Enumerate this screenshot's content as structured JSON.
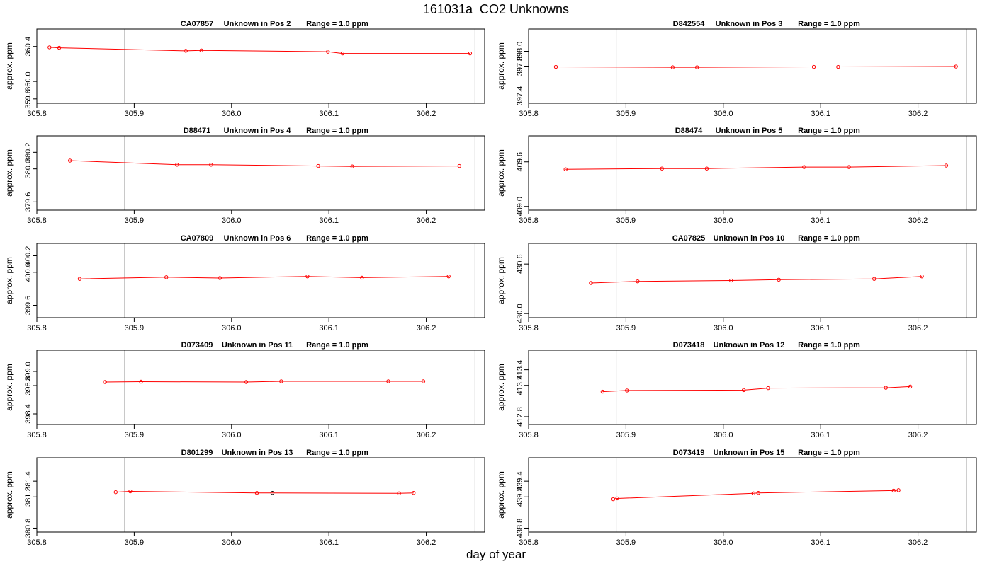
{
  "title": "161031a  CO2 Unknowns",
  "xlabel": "day of year",
  "colors": {
    "series": "#ff0000",
    "highlight": "#000000",
    "vline": "#bebebe",
    "axis": "#000000"
  },
  "chart_data": [
    {
      "type": "line",
      "title_id": "CA07857",
      "title_pos": "Unknown in Pos 2",
      "title_range": "Range = 1.0 ppm",
      "ylabel": "approx. ppm",
      "xlim": [
        305.8,
        306.26
      ],
      "ylim": [
        359.75,
        360.6
      ],
      "x_ticks": [
        "305.8",
        "305.9",
        "306.0",
        "306.1",
        "306.2"
      ],
      "y_ticks": [
        "359.8",
        "360.0",
        "360.4"
      ],
      "vlines": [
        305.89,
        306.25
      ],
      "x": [
        305.813,
        305.823,
        305.953,
        305.969,
        306.099,
        306.114,
        306.245
      ],
      "y": [
        360.39,
        360.385,
        360.35,
        360.355,
        360.34,
        360.32,
        360.32
      ],
      "highlight": []
    },
    {
      "type": "line",
      "title_id": "D842554",
      "title_pos": "Unknown in Pos 3",
      "title_range": "Range = 1.0 ppm",
      "ylabel": "approx. ppm",
      "xlim": [
        305.8,
        306.26
      ],
      "ylim": [
        397.3,
        398.3
      ],
      "x_ticks": [
        "305.8",
        "305.9",
        "306.0",
        "306.1",
        "306.2"
      ],
      "y_ticks": [
        "397.4",
        "397.8",
        "398.0"
      ],
      "vlines": [
        305.89,
        306.25
      ],
      "x": [
        305.828,
        305.948,
        305.973,
        306.093,
        306.118,
        306.239
      ],
      "y": [
        397.79,
        397.785,
        397.785,
        397.79,
        397.79,
        397.795
      ],
      "highlight": []
    },
    {
      "type": "line",
      "title_id": "D88471",
      "title_pos": "Unknown in Pos 4",
      "title_range": "Range = 1.0 ppm",
      "ylabel": "approx. ppm",
      "xlim": [
        305.8,
        306.26
      ],
      "ylim": [
        379.5,
        380.4
      ],
      "x_ticks": [
        "305.8",
        "305.9",
        "306.0",
        "306.1",
        "306.2"
      ],
      "y_ticks": [
        "379.6",
        "380.0",
        "380.2"
      ],
      "vlines": [
        305.89,
        306.25
      ],
      "x": [
        305.834,
        305.944,
        305.979,
        306.089,
        306.124,
        306.234
      ],
      "y": [
        380.1,
        380.05,
        380.05,
        380.035,
        380.03,
        380.035
      ],
      "highlight": []
    },
    {
      "type": "line",
      "title_id": "D88474",
      "title_pos": "Unknown in Pos 5",
      "title_range": "Range = 1.0 ppm",
      "ylabel": "approx. ppm",
      "xlim": [
        305.8,
        306.26
      ],
      "ylim": [
        408.95,
        409.95
      ],
      "x_ticks": [
        "305.8",
        "305.9",
        "306.0",
        "306.1",
        "306.2"
      ],
      "y_ticks": [
        "409.0",
        "409.6"
      ],
      "vlines": [
        305.89,
        306.25
      ],
      "x": [
        305.838,
        305.937,
        305.983,
        306.083,
        306.129,
        306.229
      ],
      "y": [
        409.5,
        409.51,
        409.51,
        409.53,
        409.53,
        409.55
      ],
      "highlight": []
    },
    {
      "type": "line",
      "title_id": "CA07809",
      "title_pos": "Unknown in Pos 6",
      "title_range": "Range = 1.0 ppm",
      "ylabel": "approx. ppm",
      "xlim": [
        305.8,
        306.26
      ],
      "ylim": [
        399.45,
        400.35
      ],
      "x_ticks": [
        "305.8",
        "305.9",
        "306.0",
        "306.1",
        "306.2"
      ],
      "y_ticks": [
        "399.6",
        "400.0",
        "400.2"
      ],
      "vlines": [
        305.89,
        306.25
      ],
      "x": [
        305.844,
        305.933,
        305.988,
        306.078,
        306.134,
        306.223
      ],
      "y": [
        399.92,
        399.94,
        399.93,
        399.95,
        399.935,
        399.95
      ],
      "highlight": []
    },
    {
      "type": "line",
      "title_id": "CA07825",
      "title_pos": "Unknown in Pos 10",
      "title_range": "Range = 1.0 ppm",
      "ylabel": "approx. ppm",
      "xlim": [
        305.8,
        306.26
      ],
      "ylim": [
        429.95,
        430.85
      ],
      "x_ticks": [
        "305.8",
        "305.9",
        "306.0",
        "306.1",
        "306.2"
      ],
      "y_ticks": [
        "430.0",
        "430.6"
      ],
      "vlines": [
        305.89,
        306.25
      ],
      "x": [
        305.864,
        305.912,
        306.008,
        306.057,
        306.155,
        306.204
      ],
      "y": [
        430.37,
        430.39,
        430.4,
        430.41,
        430.42,
        430.45
      ],
      "highlight": []
    },
    {
      "type": "line",
      "title_id": "D073409",
      "title_pos": "Unknown in Pos 11",
      "title_range": "Range = 1.0 ppm",
      "ylabel": "approx. ppm",
      "xlim": [
        305.8,
        306.26
      ],
      "ylim": [
        398.25,
        399.3
      ],
      "x_ticks": [
        "305.8",
        "305.9",
        "306.0",
        "306.1",
        "306.2"
      ],
      "y_ticks": [
        "398.4",
        "398.8",
        "399.0"
      ],
      "vlines": [
        305.89,
        306.25
      ],
      "x": [
        305.87,
        305.907,
        306.015,
        306.051,
        306.161,
        306.197
      ],
      "y": [
        398.85,
        398.855,
        398.85,
        398.86,
        398.86,
        398.86
      ],
      "highlight": []
    },
    {
      "type": "line",
      "title_id": "D073418",
      "title_pos": "Unknown in Pos 12",
      "title_range": "Range = 1.0 ppm",
      "ylabel": "approx. ppm",
      "xlim": [
        305.8,
        306.26
      ],
      "ylim": [
        412.7,
        413.65
      ],
      "x_ticks": [
        "305.8",
        "305.9",
        "306.0",
        "306.1",
        "306.2"
      ],
      "y_ticks": [
        "412.8",
        "413.2",
        "413.4"
      ],
      "vlines": [
        305.89,
        306.25
      ],
      "x": [
        305.876,
        305.901,
        306.021,
        306.046,
        306.167,
        306.192
      ],
      "y": [
        413.12,
        413.135,
        413.14,
        413.165,
        413.17,
        413.185
      ],
      "highlight": []
    },
    {
      "type": "line",
      "title_id": "D801299",
      "title_pos": "Unknown in Pos 13",
      "title_range": "Range = 1.0 ppm",
      "ylabel": "approx. ppm",
      "xlim": [
        305.8,
        306.26
      ],
      "ylim": [
        380.75,
        381.7
      ],
      "x_ticks": [
        "305.8",
        "305.9",
        "306.0",
        "306.1",
        "306.2"
      ],
      "y_ticks": [
        "380.8",
        "381.2",
        "381.4"
      ],
      "vlines": [
        305.89,
        306.25
      ],
      "x": [
        305.881,
        305.896,
        306.026,
        306.042,
        306.172,
        306.187
      ],
      "y": [
        381.26,
        381.27,
        381.25,
        381.25,
        381.245,
        381.25
      ],
      "highlight": [
        3
      ]
    },
    {
      "type": "line",
      "title_id": "D073419",
      "title_pos": "Unknown in Pos 15",
      "title_range": "Range = 1.0 ppm",
      "ylabel": "approx. ppm",
      "xlim": [
        305.8,
        306.26
      ],
      "ylim": [
        438.75,
        439.7
      ],
      "x_ticks": [
        "305.8",
        "305.9",
        "306.0",
        "306.1",
        "306.2"
      ],
      "y_ticks": [
        "438.8",
        "439.2",
        "439.4"
      ],
      "vlines": [
        305.89,
        306.25
      ],
      "x": [
        305.887,
        305.891,
        306.031,
        306.036,
        306.175,
        306.18
      ],
      "y": [
        439.17,
        439.18,
        439.245,
        439.25,
        439.28,
        439.285
      ],
      "highlight": []
    }
  ]
}
